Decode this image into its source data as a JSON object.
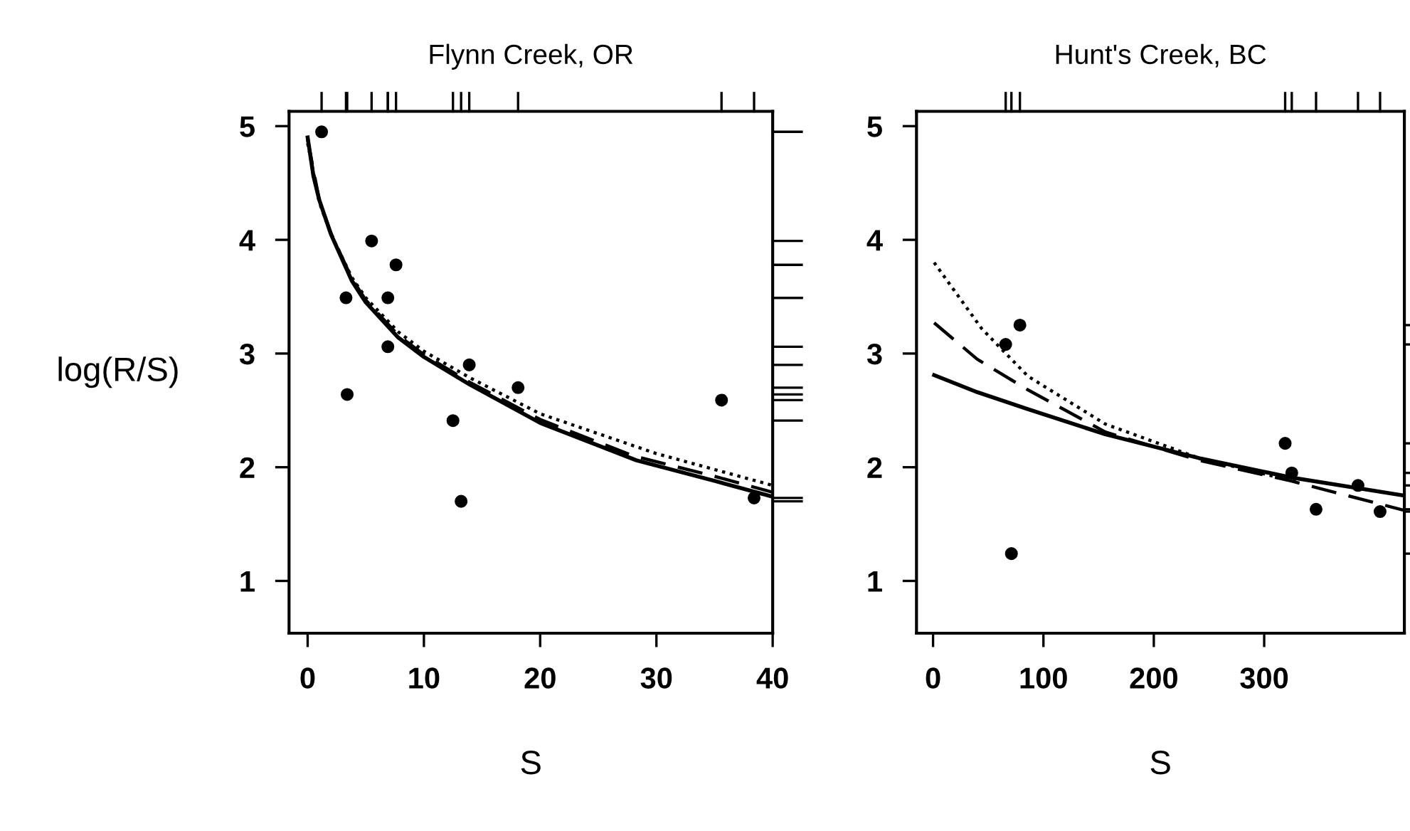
{
  "chart_data": [
    {
      "type": "scatter",
      "title": "Flynn Creek, OR",
      "xlabel": "S",
      "ylabel": "log(R/S)",
      "xlim": [
        -1.6,
        40
      ],
      "xticks": [
        0,
        10,
        20,
        30,
        40
      ],
      "ylim": [
        0.54,
        5.13
      ],
      "yticks": [
        1,
        2,
        3,
        4,
        5
      ],
      "grid": false,
      "legend": false,
      "series": [
        {
          "marker": "circle",
          "color": "#000000",
          "x": [
            1.2,
            3.3,
            5.5,
            7.6,
            3.4,
            6.9,
            6.9,
            13.9,
            18.1,
            12.5,
            13.2,
            35.6,
            38.4
          ],
          "values": [
            4.95,
            3.49,
            3.99,
            3.78,
            2.64,
            3.49,
            3.06,
            2.9,
            2.7,
            2.41,
            1.7,
            2.59,
            1.73
          ]
        },
        {
          "type": "line",
          "line_style": "solid",
          "color": "#000000",
          "x": [
            0,
            0.5,
            1,
            2,
            3.8,
            5,
            7.8,
            10,
            13.9,
            20,
            28.3,
            35,
            40
          ],
          "values": [
            4.9,
            4.56,
            4.35,
            4.05,
            3.64,
            3.45,
            3.14,
            2.97,
            2.73,
            2.39,
            2.06,
            1.88,
            1.74
          ]
        },
        {
          "type": "line",
          "line_style": "dashed",
          "color": "#000000",
          "x": [
            0,
            1,
            2,
            3.8,
            5,
            7.8,
            10,
            13.9,
            20,
            28,
            35,
            40
          ],
          "values": [
            4.88,
            4.35,
            4.06,
            3.66,
            3.47,
            3.16,
            2.99,
            2.75,
            2.42,
            2.1,
            1.92,
            1.78
          ]
        },
        {
          "type": "line",
          "line_style": "dotted",
          "color": "#000000",
          "x": [
            0,
            1,
            2,
            3.8,
            5,
            7.8,
            10,
            13.9,
            20,
            30,
            40
          ],
          "values": [
            4.85,
            4.33,
            4.05,
            3.67,
            3.49,
            3.19,
            3.02,
            2.79,
            2.47,
            2.12,
            1.84
          ]
        }
      ]
    },
    {
      "type": "scatter",
      "title": "Hunt's Creek, BC",
      "xlabel": "S",
      "xlim": [
        -15,
        427
      ],
      "xticks": [
        0,
        100,
        200,
        300
      ],
      "ylim": [
        0.54,
        5.13
      ],
      "yticks": [
        1,
        2,
        3,
        4,
        5
      ],
      "grid": false,
      "legend": false,
      "series": [
        {
          "marker": "circle",
          "color": "#000000",
          "x": [
            65.8,
            78.7,
            71,
            319,
            325,
            347,
            385,
            405
          ],
          "values": [
            3.08,
            3.25,
            1.24,
            2.21,
            1.95,
            1.63,
            1.84,
            1.61
          ]
        },
        {
          "type": "line",
          "line_style": "solid",
          "color": "#000000",
          "x": [
            1,
            40,
            86,
            156,
            241,
            324,
            427
          ],
          "values": [
            2.81,
            2.66,
            2.51,
            2.29,
            2.08,
            1.91,
            1.75
          ]
        },
        {
          "type": "line",
          "line_style": "dashed",
          "color": "#000000",
          "x": [
            1,
            40,
            86,
            156,
            241,
            324,
            427
          ],
          "values": [
            3.27,
            2.95,
            2.68,
            2.31,
            2.06,
            1.88,
            1.62
          ]
        },
        {
          "type": "line",
          "line_style": "dotted",
          "color": "#000000",
          "x": [
            1,
            44,
            86,
            156,
            241,
            330
          ],
          "values": [
            3.8,
            3.22,
            2.8,
            2.38,
            2.08,
            1.87
          ]
        }
      ]
    }
  ]
}
